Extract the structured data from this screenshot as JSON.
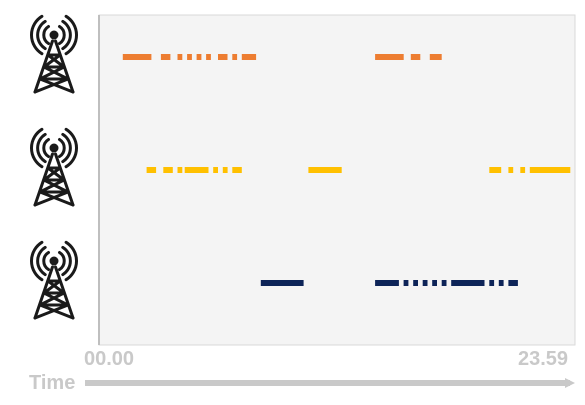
{
  "chart_data": {
    "type": "timeline",
    "x_start_label": "00.00",
    "x_end_label": "23.59",
    "axis_title": "Time",
    "rows": [
      {
        "icon": "radio-tower-icon",
        "color": "#ED7D31",
        "segments": [
          [
            0.05,
            0.11
          ],
          [
            0.13,
            0.15
          ],
          [
            0.165,
            0.175
          ],
          [
            0.185,
            0.195
          ],
          [
            0.205,
            0.215
          ],
          [
            0.225,
            0.235
          ],
          [
            0.25,
            0.27
          ],
          [
            0.28,
            0.29
          ],
          [
            0.3,
            0.33
          ],
          [
            0.58,
            0.64
          ],
          [
            0.655,
            0.675
          ],
          [
            0.695,
            0.72
          ]
        ]
      },
      {
        "icon": "radio-tower-icon",
        "color": "#FFC000",
        "segments": [
          [
            0.1,
            0.12
          ],
          [
            0.135,
            0.155
          ],
          [
            0.165,
            0.175
          ],
          [
            0.18,
            0.23
          ],
          [
            0.24,
            0.25
          ],
          [
            0.26,
            0.27
          ],
          [
            0.28,
            0.3
          ],
          [
            0.44,
            0.51
          ],
          [
            0.82,
            0.845
          ],
          [
            0.86,
            0.87
          ],
          [
            0.885,
            0.895
          ],
          [
            0.905,
            0.99
          ]
        ]
      },
      {
        "icon": "radio-tower-icon",
        "color": "#0D2458",
        "segments": [
          [
            0.34,
            0.43
          ],
          [
            0.58,
            0.63
          ],
          [
            0.64,
            0.65
          ],
          [
            0.66,
            0.67
          ],
          [
            0.68,
            0.69
          ],
          [
            0.7,
            0.71
          ],
          [
            0.72,
            0.73
          ],
          [
            0.74,
            0.81
          ],
          [
            0.82,
            0.83
          ],
          [
            0.84,
            0.85
          ],
          [
            0.86,
            0.88
          ]
        ]
      }
    ]
  }
}
